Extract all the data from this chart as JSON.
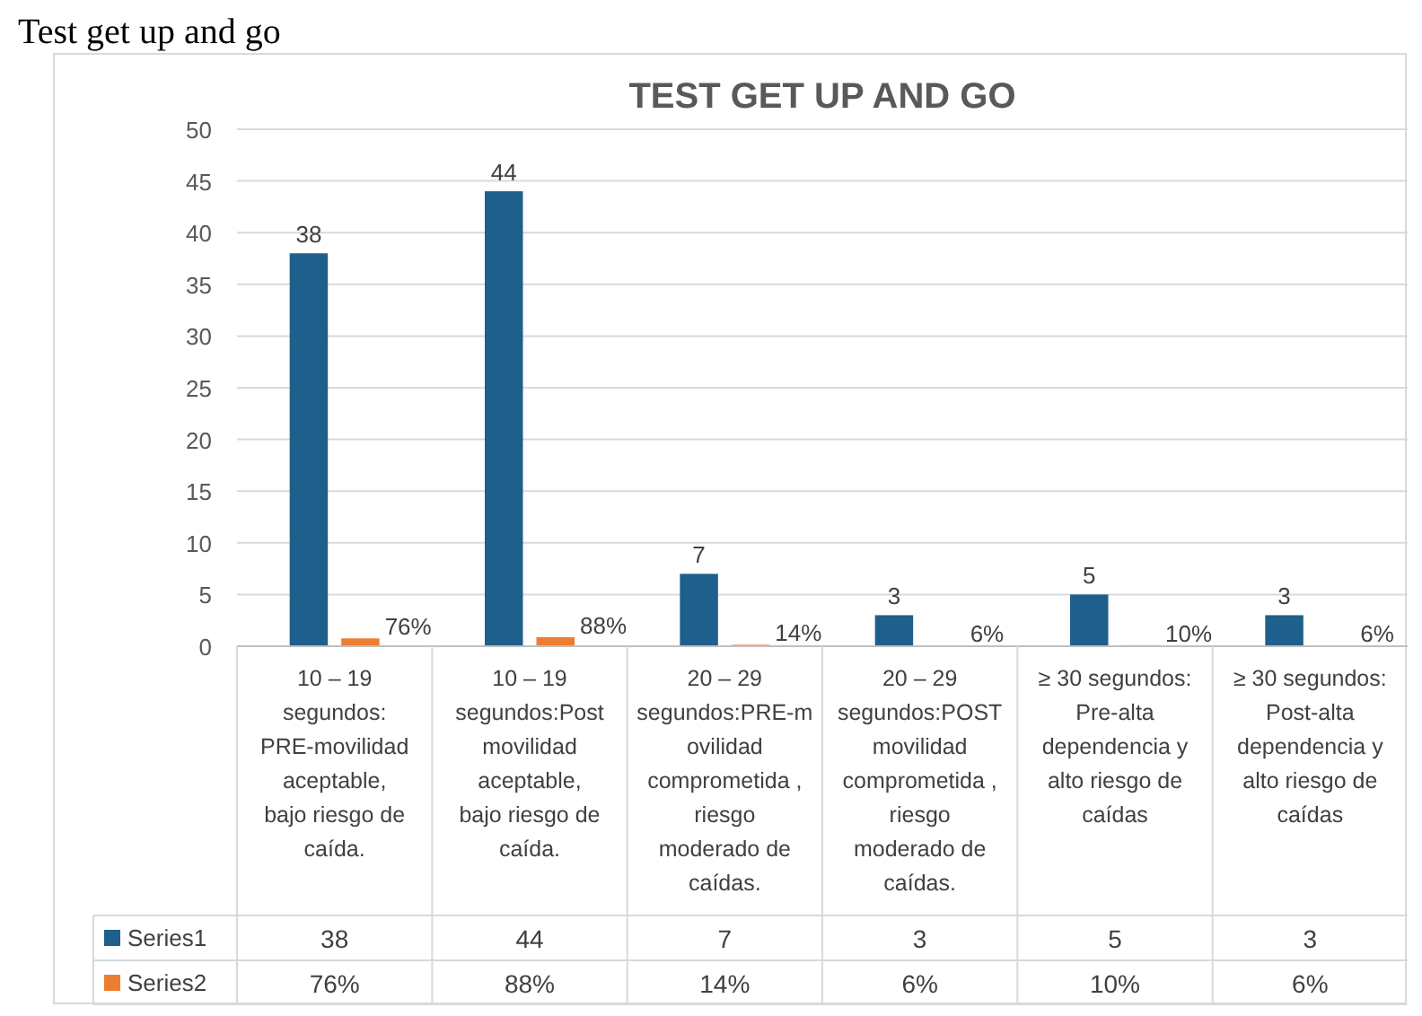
{
  "chart_data": {
    "type": "bar",
    "title": "TEST GET UP AND GO",
    "annotations": [
      "Test get up and go"
    ],
    "categories": [
      "10 – 19 segundos: PRE-movilidad aceptable, bajo riesgo de caída.",
      "10 – 19 segundos:Post movilidad aceptable, bajo riesgo de caída.",
      "20 – 29 segundos:PRE-movilidad comprometida , riesgo moderado de caídas.",
      "20 – 29 segundos:POST movilidad comprometida , riesgo moderado de caídas.",
      "≥ 30 segundos: Pre-alta dependencia y alto riesgo de caídas",
      "≥ 30 segundos: Post-alta dependencia y alto riesgo de caídas"
    ],
    "series": [
      {
        "name": "Series1",
        "color": "#1f5f8b",
        "values": [
          38,
          44,
          7,
          3,
          5,
          3
        ],
        "value_labels": [
          "38",
          "44",
          "7",
          "3",
          "5",
          "3"
        ]
      },
      {
        "name": "Series2",
        "color": "#ed7d31",
        "values": [
          0.76,
          0.88,
          0.14,
          0.06,
          0.1,
          0.06
        ],
        "value_labels": [
          "76%",
          "88%",
          "14%",
          "6%",
          "10%",
          "6%"
        ]
      }
    ],
    "ylim": [
      0,
      50
    ],
    "yticks": [
      0,
      5,
      10,
      15,
      20,
      25,
      30,
      35,
      40,
      45,
      50
    ],
    "grid": "y",
    "legend": "bottom"
  }
}
